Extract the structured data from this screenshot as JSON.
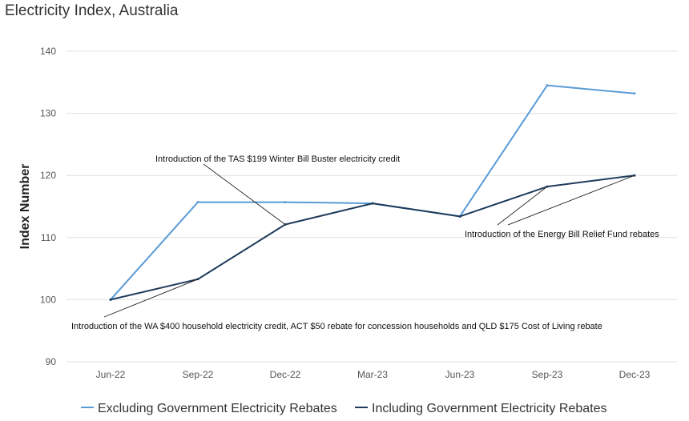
{
  "title": "Electricity Index, Australia",
  "colors": {
    "excl": "#5b9bd5",
    "incl": "#1f3c5c",
    "grid": "#e0e0e0",
    "annotation": "#222222"
  },
  "chart_data": {
    "type": "line",
    "title": "Electricity Index, Australia",
    "xlabel": "",
    "ylabel": "Index Number",
    "ylim": [
      90,
      140
    ],
    "yticks": [
      90,
      100,
      110,
      120,
      130,
      140
    ],
    "grid": true,
    "legend": "bottom",
    "categories": [
      "Jun-22",
      "Sep-22",
      "Dec-22",
      "Mar-23",
      "Jun-23",
      "Sep-23",
      "Dec-23"
    ],
    "series": [
      {
        "name": "Excluding Government Electricity Rebates",
        "color": "#5b9bd5",
        "values": [
          100.0,
          115.7,
          115.7,
          115.5,
          113.4,
          134.5,
          133.2
        ]
      },
      {
        "name": "Including Government Electricity Rebates",
        "color": "#1f3c5c",
        "values": [
          100.0,
          103.3,
          112.1,
          115.5,
          113.4,
          118.2,
          120.0
        ]
      }
    ],
    "annotations": [
      {
        "text": "Introduction of the TAS $199 Winter Bill Buster electricity credit",
        "targets": [
          {
            "category": "Dec-22",
            "value": 112.1
          }
        ]
      },
      {
        "text": "Introduction of the WA $400 household electricity credit, ACT $50 rebate for concession households and QLD $175 Cost of Living rebate",
        "targets": [
          {
            "category": "Sep-22",
            "value": 103.3
          }
        ]
      },
      {
        "text": "Introduction of the Energy Bill Relief Fund rebates",
        "targets": [
          {
            "category": "Sep-23",
            "value": 118.2
          },
          {
            "category": "Dec-23",
            "value": 120.0
          }
        ]
      }
    ]
  }
}
